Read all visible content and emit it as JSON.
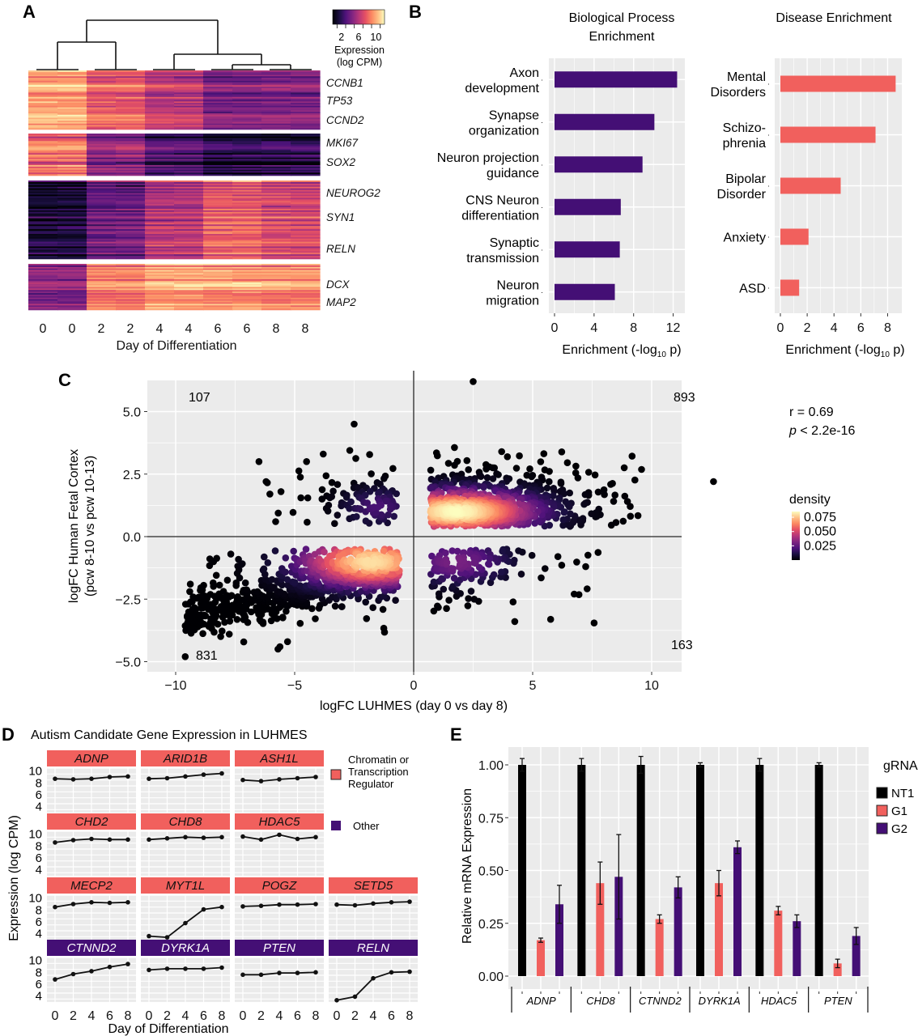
{
  "figure": {
    "panel_labels": [
      "A",
      "B",
      "C",
      "D",
      "E"
    ]
  },
  "chart_data": [
    {
      "id": "A",
      "type": "heatmap",
      "title": "",
      "xlabel": "Day of Differentiation",
      "ylabel": "",
      "x_tick_labels": [
        "0",
        "0",
        "2",
        "2",
        "4",
        "4",
        "6",
        "6",
        "8",
        "8"
      ],
      "colorbar": {
        "title_line1": "Expression",
        "title_line2": "(log CPM)",
        "tick_labels": [
          "2",
          "6",
          "10"
        ],
        "range": [
          0,
          12
        ],
        "colormap": "magma"
      },
      "dendrogram": "samples cluster as (day0,day2) vs (day4,(day6,day8))",
      "clusters": [
        {
          "name": "cluster-1",
          "genes": [
            "CCNB1",
            "TP53",
            "CCND2"
          ],
          "mean_by_day": [
            9.5,
            7.5,
            6.0,
            4.0,
            4.2
          ],
          "rows": 40
        },
        {
          "name": "cluster-2",
          "genes": [
            "MKI67",
            "SOX2"
          ],
          "mean_by_day": [
            8.0,
            4.5,
            2.5,
            1.2,
            1.5
          ],
          "rows": 28
        },
        {
          "name": "cluster-3",
          "genes": [
            "NEUROG2",
            "SYN1",
            "RELN"
          ],
          "mean_by_day": [
            1.3,
            3.8,
            6.0,
            7.8,
            7.0
          ],
          "rows": 50
        },
        {
          "name": "cluster-4",
          "genes": [
            "DCX",
            "MAP2"
          ],
          "mean_by_day": [
            4.5,
            8.6,
            9.5,
            9.3,
            9.0
          ],
          "rows": 30
        }
      ]
    },
    {
      "id": "B1",
      "type": "bar",
      "title_line1": "Biological Process",
      "title_line2": "Enrichment",
      "categories": [
        [
          "Axon",
          "development"
        ],
        [
          "Synapse",
          "organization"
        ],
        [
          "Neuron projection",
          "guidance"
        ],
        [
          "CNS Neuron",
          "differentiation"
        ],
        [
          "Synaptic",
          "transmission"
        ],
        [
          "Neuron",
          "migration"
        ]
      ],
      "values": [
        12.4,
        10.1,
        8.9,
        6.7,
        6.6,
        6.1
      ],
      "xlabel_main": "Enrichment (-log",
      "xlabel_sub": "10",
      "xlabel_end": " p)",
      "xlim": [
        0,
        13.1
      ],
      "x_ticks": [
        0,
        4,
        8,
        12
      ],
      "color": "#440f75",
      "orientation": "horizontal"
    },
    {
      "id": "B2",
      "type": "bar",
      "title_line1": "Disease Enrichment",
      "categories": [
        [
          "Mental",
          "Disorders"
        ],
        [
          "Schizo-",
          "phrenia"
        ],
        [
          "Bipolar",
          "Disorder"
        ],
        [
          "Anxiety"
        ],
        [
          "ASD"
        ]
      ],
      "values": [
        8.6,
        7.1,
        4.5,
        2.1,
        1.4
      ],
      "xlabel_main": "Enrichment (-log",
      "xlabel_sub": "10",
      "xlabel_end": " p)",
      "xlim": [
        0,
        9.0
      ],
      "x_ticks": [
        0,
        2,
        4,
        6,
        8
      ],
      "color": "#f1605d",
      "orientation": "horizontal"
    },
    {
      "id": "C",
      "type": "scatter",
      "xlabel": "logFC LUHMES (day 0 vs day 8)",
      "ylabel_line1": "logFC Human Fetal Cortex",
      "ylabel_line2": "(pcw 8-10 vs pcw 10-13)",
      "xlim": [
        -10.5,
        13.0
      ],
      "ylim": [
        -5.2,
        6.2
      ],
      "x_ticks": [
        -10,
        -5,
        0,
        5,
        10
      ],
      "x_tick_labels": [
        "−10",
        "−5",
        "0",
        "5",
        "10"
      ],
      "y_ticks": [
        5.0,
        2.5,
        0.0,
        -2.5,
        -5.0
      ],
      "y_tick_labels": [
        "5.0",
        "2.5",
        "0.0",
        "−2.5",
        "−5.0"
      ],
      "quadrant_counts": {
        "top_left": "107",
        "top_right": "893",
        "bottom_left": "831",
        "bottom_right": "163"
      },
      "stats": {
        "r_text": "r = 0.69",
        "p_italic": "p",
        "p_rest": " < 2.2e-16"
      },
      "legend": {
        "title": "density",
        "tick_labels": [
          "0.075",
          "0.050",
          "0.025"
        ],
        "range": [
          0.0,
          0.085
        ],
        "placement": "right"
      },
      "clusters": [
        {
          "cx": 1.8,
          "cy": 1.0,
          "sx": 2.2,
          "sy": 0.55,
          "n": 893,
          "xmin": 0.7,
          "xmax": 9.6,
          "ymin": 0.4,
          "ymax": 3.6,
          "peak": 0.085
        },
        {
          "cx": -1.8,
          "cy": -1.0,
          "sx": 2.0,
          "sy": 0.65,
          "n": 831,
          "xmin": -9.6,
          "xmax": -0.6,
          "ymin": -4.8,
          "ymax": -0.5,
          "peak": 0.08
        },
        {
          "cx": -1.5,
          "cy": 1.2,
          "sx": 1.0,
          "sy": 0.5,
          "n": 107,
          "xmin": -6.5,
          "xmax": -0.7,
          "ymin": 0.5,
          "ymax": 4.5,
          "peak": 0.02
        },
        {
          "cx": 1.8,
          "cy": -1.0,
          "sx": 1.5,
          "sy": 0.6,
          "n": 163,
          "xmin": 0.7,
          "xmax": 9.5,
          "ymin": -3.5,
          "ymax": -0.5,
          "peak": 0.03
        }
      ],
      "outliers": [
        [
          2.5,
          6.2
        ],
        [
          12.6,
          2.2
        ],
        [
          -2.5,
          4.5
        ],
        [
          -9.6,
          -4.8
        ],
        [
          -5.7,
          -4.5
        ],
        [
          -5.3,
          -4.2
        ],
        [
          -6.5,
          3.0
        ],
        [
          -6.2,
          2.2
        ],
        [
          -4.5,
          3.0
        ],
        [
          -3.8,
          3.3
        ],
        [
          -5.8,
          0.6
        ]
      ]
    },
    {
      "id": "D",
      "type": "line",
      "title": "Autism Candidate Gene Expression in LUHMES",
      "xlabel": "Day of Differentiation",
      "ylabel": "Expression (log CPM)",
      "x": [
        0,
        2,
        4,
        6,
        8
      ],
      "ylim": [
        3,
        10.5
      ],
      "y_ticks": [
        4,
        6,
        8,
        10
      ],
      "legend": [
        {
          "label_lines": [
            "Chromatin or",
            "Transcription",
            "Regulator"
          ],
          "color": "#f1605d"
        },
        {
          "label_lines": [
            "Other"
          ],
          "color": "#440f75"
        }
      ],
      "series": [
        {
          "name": "ADNP",
          "group": "Chromatin or Transcription Regulator",
          "values": [
            8.7,
            8.6,
            8.7,
            9.0,
            9.1
          ]
        },
        {
          "name": "ARID1B",
          "group": "Chromatin or Transcription Regulator",
          "values": [
            8.7,
            8.8,
            9.1,
            9.4,
            9.6
          ]
        },
        {
          "name": "ASH1L",
          "group": "Chromatin or Transcription Regulator",
          "values": [
            8.5,
            8.3,
            8.6,
            8.8,
            9.0
          ]
        },
        {
          "name": "CHD2",
          "group": "Chromatin or Transcription Regulator",
          "values": [
            8.6,
            9.0,
            9.2,
            9.1,
            9.1
          ]
        },
        {
          "name": "CHD8",
          "group": "Chromatin or Transcription Regulator",
          "values": [
            9.1,
            9.3,
            9.5,
            9.4,
            9.5
          ]
        },
        {
          "name": "HDAC5",
          "group": "Chromatin or Transcription Regulator",
          "values": [
            9.6,
            9.1,
            9.9,
            9.2,
            9.5
          ]
        },
        {
          "name": "MECP2",
          "group": "Chromatin or Transcription Regulator",
          "values": [
            8.5,
            9.0,
            9.3,
            9.2,
            9.3
          ]
        },
        {
          "name": "MYT1L",
          "group": "Chromatin or Transcription Regulator",
          "values": [
            3.6,
            3.4,
            5.8,
            8.1,
            8.5
          ]
        },
        {
          "name": "POGZ",
          "group": "Chromatin or Transcription Regulator",
          "values": [
            8.6,
            8.7,
            8.9,
            8.9,
            9.0
          ]
        },
        {
          "name": "SETD5",
          "group": "Chromatin or Transcription Regulator",
          "values": [
            8.9,
            8.8,
            9.1,
            9.3,
            9.4
          ]
        },
        {
          "name": "CTNND2",
          "group": "Other",
          "values": [
            6.8,
            7.7,
            8.2,
            8.9,
            9.4
          ]
        },
        {
          "name": "DYRK1A",
          "group": "Other",
          "values": [
            8.4,
            8.6,
            8.6,
            8.6,
            8.8
          ]
        },
        {
          "name": "PTEN",
          "group": "Other",
          "values": [
            7.6,
            7.6,
            7.9,
            7.9,
            8.0
          ]
        },
        {
          "name": "RELN",
          "group": "Other",
          "values": [
            3.3,
            3.9,
            7.0,
            8.0,
            8.1
          ]
        }
      ],
      "layout_rows": [
        [
          "ADNP",
          "ARID1B",
          "ASH1L"
        ],
        [
          "CHD2",
          "CHD8",
          "HDAC5"
        ],
        [
          "MECP2",
          "MYT1L",
          "POGZ",
          "SETD5"
        ],
        [
          "CTNND2",
          "DYRK1A",
          "PTEN",
          "RELN"
        ]
      ],
      "x_tick_labels": [
        "0",
        "2",
        "4",
        "6",
        "8"
      ]
    },
    {
      "id": "E",
      "type": "bar",
      "ylabel": "Relative mRNA Expression",
      "ylim": [
        0,
        1.08
      ],
      "y_ticks": [
        0.0,
        0.25,
        0.5,
        0.75,
        1.0
      ],
      "y_tick_labels": [
        "0.00",
        "0.25",
        "0.50",
        "0.75",
        "1.00"
      ],
      "categories": [
        "ADNP",
        "CHD8",
        "CTNND2",
        "DYRK1A",
        "HDAC5",
        "PTEN"
      ],
      "legend": {
        "title": "gRNA",
        "placement": "right"
      },
      "series": [
        {
          "name": "NT1",
          "color": "#000000",
          "values": [
            1.0,
            1.0,
            1.0,
            1.0,
            1.0,
            1.0
          ],
          "errors": [
            0.03,
            0.03,
            0.04,
            0.01,
            0.03,
            0.01
          ]
        },
        {
          "name": "G1",
          "color": "#f1605d",
          "values": [
            0.17,
            0.44,
            0.27,
            0.44,
            0.31,
            0.06
          ],
          "errors": [
            0.01,
            0.1,
            0.02,
            0.06,
            0.02,
            0.02
          ]
        },
        {
          "name": "G2",
          "color": "#440f75",
          "values": [
            0.34,
            0.47,
            0.42,
            0.61,
            0.26,
            0.19
          ],
          "errors": [
            0.09,
            0.2,
            0.05,
            0.03,
            0.03,
            0.04
          ]
        }
      ]
    }
  ]
}
